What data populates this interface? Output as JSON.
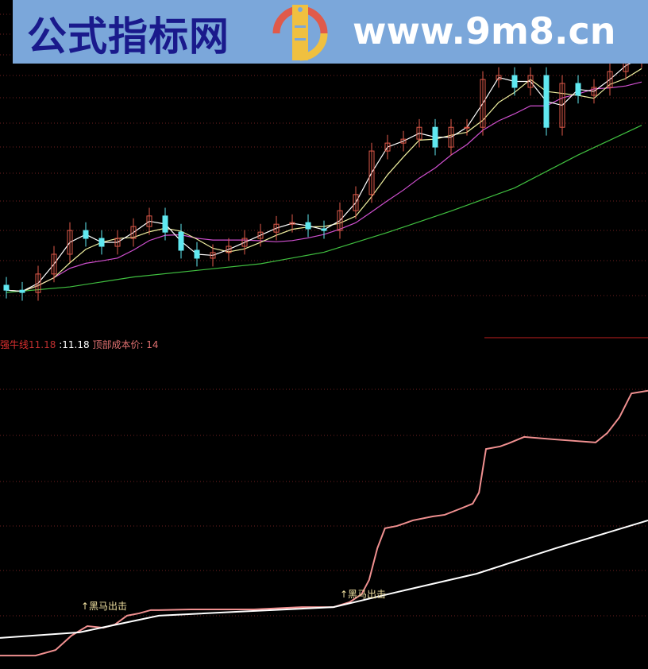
{
  "banner": {
    "site_name": "公式指标网",
    "site_url": "www.9m8.cn",
    "logo_text": "www.9m8.cn"
  },
  "legend": {
    "name": "强牛线",
    "value1": "11.18",
    "value2": ":11.18",
    "cost_label": "顶部成本价: 14"
  },
  "colors": {
    "up": "#e05a4a",
    "down": "#60e8f0",
    "ma_short": "#ffffff",
    "ma_mid": "#f0f0a0",
    "ma_long": "#d050d0",
    "ma_green": "#40c040",
    "pink": "#f09090",
    "white": "#ffffff",
    "grid": "#702020"
  },
  "chart_data": [
    {
      "type": "candlestick",
      "ylim": [
        7,
        17
      ],
      "close": [
        8.2,
        8.13,
        8.69,
        9.29,
        10.01,
        9.77,
        9.53,
        9.77,
        10.13,
        10.45,
        9.96,
        9.41,
        9.17,
        9.34,
        9.53,
        9.77,
        9.96,
        10.2,
        10.25,
        10.06,
        10.01,
        10.61,
        11.1,
        12.42,
        12.66,
        12.78,
        13.14,
        12.54,
        13.14,
        13.14,
        14.59,
        14.71,
        14.35,
        14.71,
        13.14,
        14.47,
        14.11,
        14.35,
        14.83,
        15.19,
        15.31
      ],
      "open": [
        8.35,
        8.2,
        8.13,
        8.69,
        9.29,
        10.01,
        9.77,
        9.53,
        9.77,
        10.13,
        10.45,
        9.96,
        9.41,
        9.17,
        9.34,
        9.53,
        9.77,
        9.96,
        10.2,
        10.25,
        10.06,
        10.01,
        10.61,
        11.1,
        12.42,
        12.66,
        12.78,
        13.14,
        12.54,
        13.14,
        13.14,
        14.59,
        14.71,
        14.35,
        14.71,
        13.14,
        14.47,
        14.11,
        14.35,
        14.83,
        15.19
      ],
      "green_ma": [
        [
          0,
          8.13
        ],
        [
          4,
          8.3
        ],
        [
          8,
          8.6
        ],
        [
          12,
          8.8
        ],
        [
          16,
          9.0
        ],
        [
          20,
          9.35
        ],
        [
          24,
          9.95
        ],
        [
          28,
          10.6
        ],
        [
          32,
          11.3
        ],
        [
          36,
          12.3
        ],
        [
          40,
          13.2
        ]
      ]
    },
    {
      "type": "line",
      "ylim": [
        7,
        17
      ],
      "series": [
        {
          "color": "pink",
          "points": [
            [
              0,
              7.41
            ],
            [
              5.6,
              7.41
            ],
            [
              8.75,
              7.58
            ],
            [
              11.25,
              8.02
            ],
            [
              13.75,
              8.31
            ],
            [
              16.25,
              8.26
            ],
            [
              18.1,
              8.36
            ],
            [
              20,
              8.63
            ],
            [
              21.9,
              8.7
            ],
            [
              23.75,
              8.8
            ],
            [
              25,
              8.8
            ],
            [
              30,
              8.82
            ],
            [
              40,
              8.82
            ],
            [
              47.5,
              8.89
            ],
            [
              52.5,
              8.89
            ],
            [
              55,
              9.04
            ],
            [
              56.9,
              9.28
            ],
            [
              58.1,
              9.72
            ],
            [
              59.4,
              10.69
            ],
            [
              60.6,
              11.3
            ],
            [
              62.5,
              11.37
            ],
            [
              65,
              11.54
            ],
            [
              68.1,
              11.66
            ],
            [
              70,
              11.71
            ],
            [
              72.5,
              11.9
            ],
            [
              74.4,
              12.05
            ],
            [
              75.4,
              12.39
            ],
            [
              76.5,
              13.72
            ],
            [
              78.75,
              13.8
            ],
            [
              80,
              13.89
            ],
            [
              82.5,
              14.09
            ],
            [
              87.5,
              14.01
            ],
            [
              93.75,
              13.92
            ],
            [
              95.6,
              14.21
            ],
            [
              97.5,
              14.69
            ],
            [
              99.4,
              15.42
            ],
            [
              102,
              15.5
            ]
          ]
        },
        {
          "color": "white",
          "points": [
            [
              0,
              7.95
            ],
            [
              12.5,
              8.12
            ],
            [
              25,
              8.63
            ],
            [
              37.5,
              8.75
            ],
            [
              52.5,
              8.89
            ],
            [
              62.5,
              9.35
            ],
            [
              75,
              9.91
            ],
            [
              87.5,
              10.69
            ],
            [
              102,
              11.54
            ]
          ]
        }
      ],
      "annotations": [
        {
          "text": "↑黑马出击",
          "x": 12.75,
          "y": 8.9
        },
        {
          "text": "↑黑马出击",
          "x": 53.5,
          "y": 9.25
        }
      ]
    }
  ]
}
